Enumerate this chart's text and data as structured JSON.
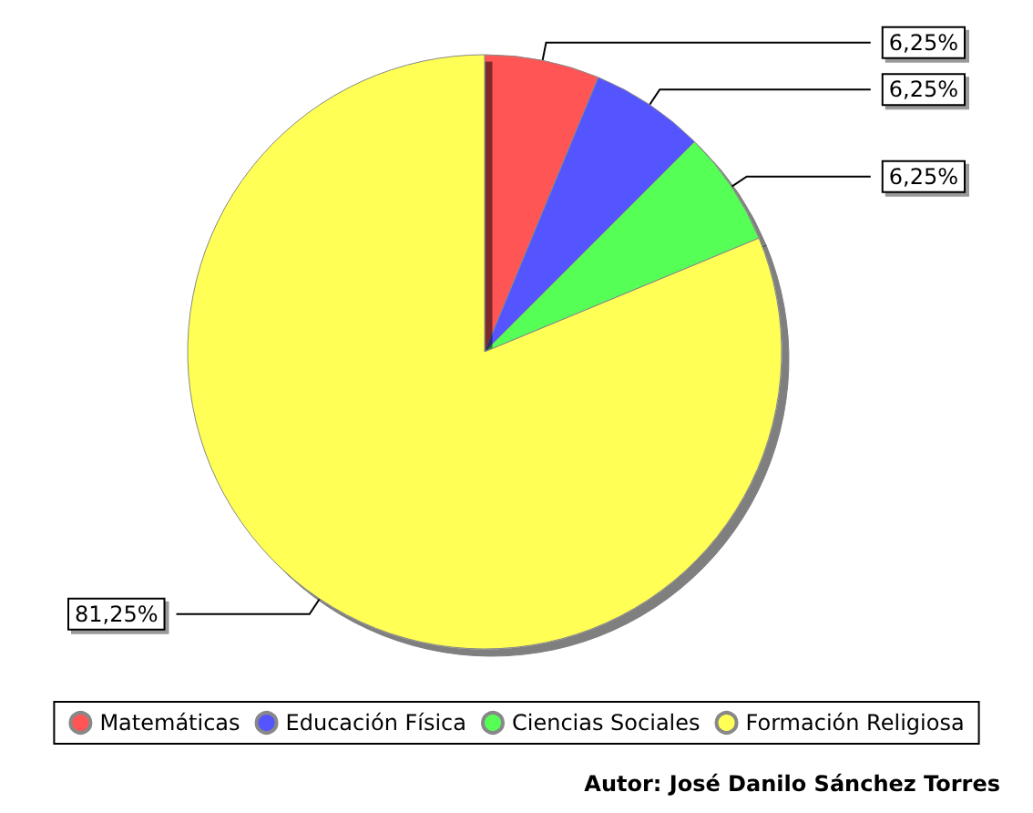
{
  "chart_data": {
    "type": "pie",
    "categories": [
      "Matemáticas",
      "Educación Física",
      "Ciencias Sociales",
      "Formación Religiosa"
    ],
    "values": [
      6.25,
      6.25,
      6.25,
      81.25
    ],
    "colors": [
      "#ff5555",
      "#5555ff",
      "#55ff55",
      "#ffff55"
    ],
    "value_labels": [
      "6,25%",
      "6,25%",
      "6,25%",
      "81,25%"
    ],
    "legend": "bottom",
    "annotations": [
      "Autor: José Danilo Sánchez Torres"
    ]
  }
}
